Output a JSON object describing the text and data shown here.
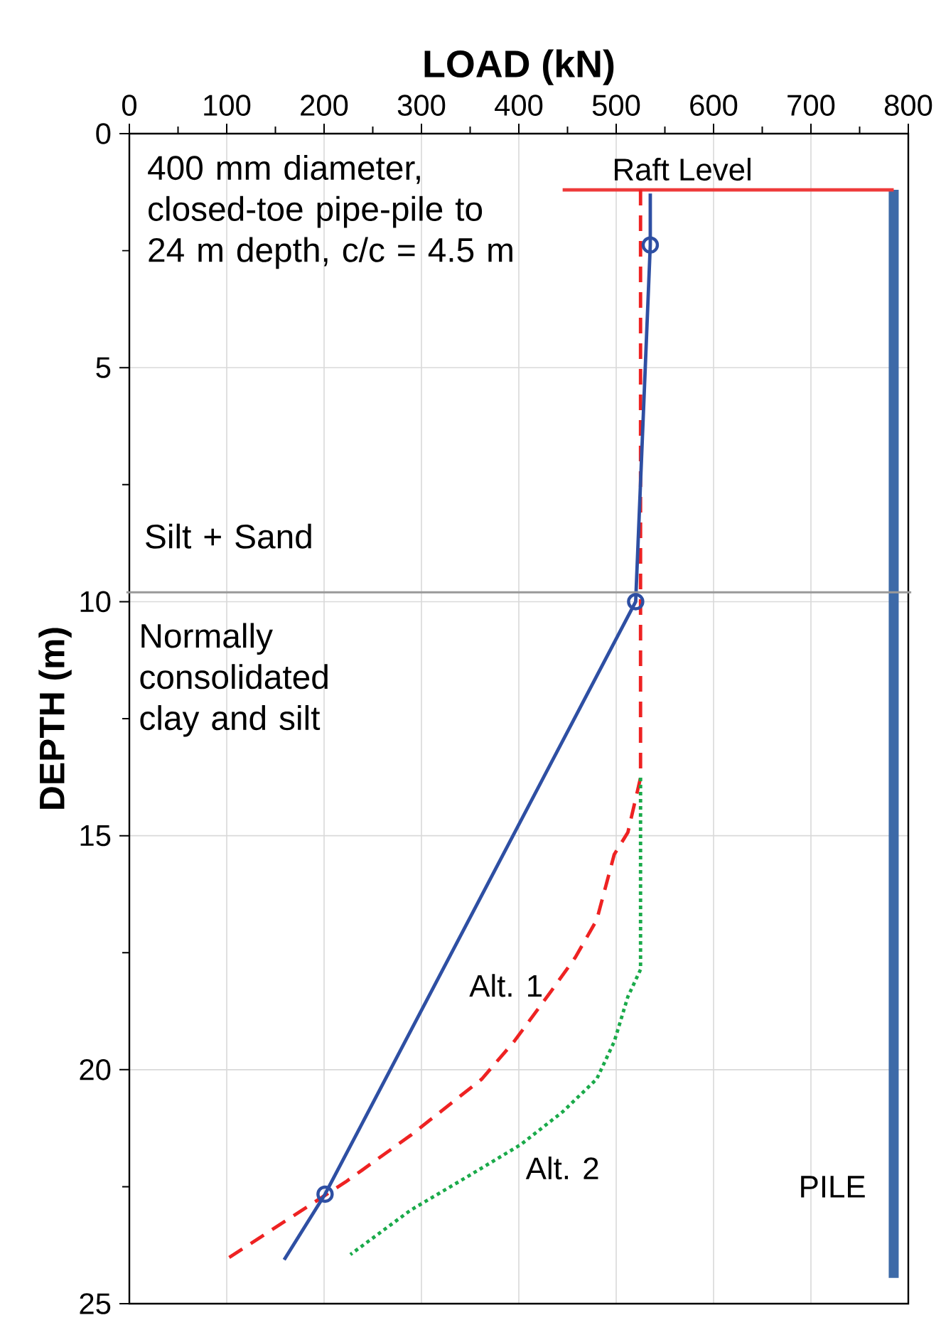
{
  "chart_data": {
    "type": "line",
    "xlabel": "LOAD (kN)",
    "ylabel": "DEPTH (m)",
    "xlim": [
      0,
      800
    ],
    "xticks": [
      0,
      100,
      200,
      300,
      400,
      500,
      600,
      700,
      800
    ],
    "ylim": [
      25,
      0
    ],
    "yticks": [
      0,
      5,
      10,
      15,
      20,
      25
    ],
    "grid": true,
    "series": [
      {
        "color": "#3d6aa8",
        "line_style": "solid",
        "x": [
          785,
          785
        ],
        "values": [
          1.2,
          24.45
        ]
      },
      {
        "color": "#ee3a3a",
        "line_style": "solid",
        "x": [
          445,
          785
        ],
        "values": [
          1.2,
          1.2
        ]
      },
      {
        "color": "#ee2222",
        "line_style": "dashed",
        "x": [
          525,
          525,
          512,
          498,
          480,
          458,
          434,
          395,
          362,
          289,
          222,
          99
        ],
        "values": [
          1.2,
          13.76,
          14.93,
          15.4,
          16.8,
          17.6,
          18.3,
          19.4,
          20.2,
          21.4,
          22.4,
          24.06
        ]
      },
      {
        "color": "#1aaa4a",
        "line_style": "dotted",
        "x": [
          525,
          525,
          512,
          498,
          480,
          445,
          402,
          346,
          289,
          227
        ],
        "values": [
          13.76,
          17.86,
          18.44,
          19.4,
          20.2,
          20.9,
          21.6,
          22.3,
          23.0,
          23.95
        ]
      },
      {
        "color": "#2e4fa3",
        "line_style": "solid",
        "x": [
          535,
          535,
          520,
          201,
          159
        ],
        "values": [
          1.28,
          2.38,
          10,
          22.66,
          24.06
        ]
      },
      {
        "type": "scatter",
        "color": "#2e4fa3",
        "marker": "circle",
        "x": [
          535,
          520,
          201
        ],
        "values": [
          2.38,
          10,
          22.66
        ]
      }
    ],
    "ref_lines": [
      {
        "axis": "y",
        "value": 9.8,
        "color": "#9a9a9a"
      }
    ],
    "annotations": [
      "400 mm diameter, closed-toe pipe-pile to 24 m depth, c/c = 4.5 m",
      "Silt + Sand",
      "Normally consolidated clay and silt",
      "Raft Level",
      "Alt. 1",
      "Alt. 2",
      "PILE"
    ]
  }
}
